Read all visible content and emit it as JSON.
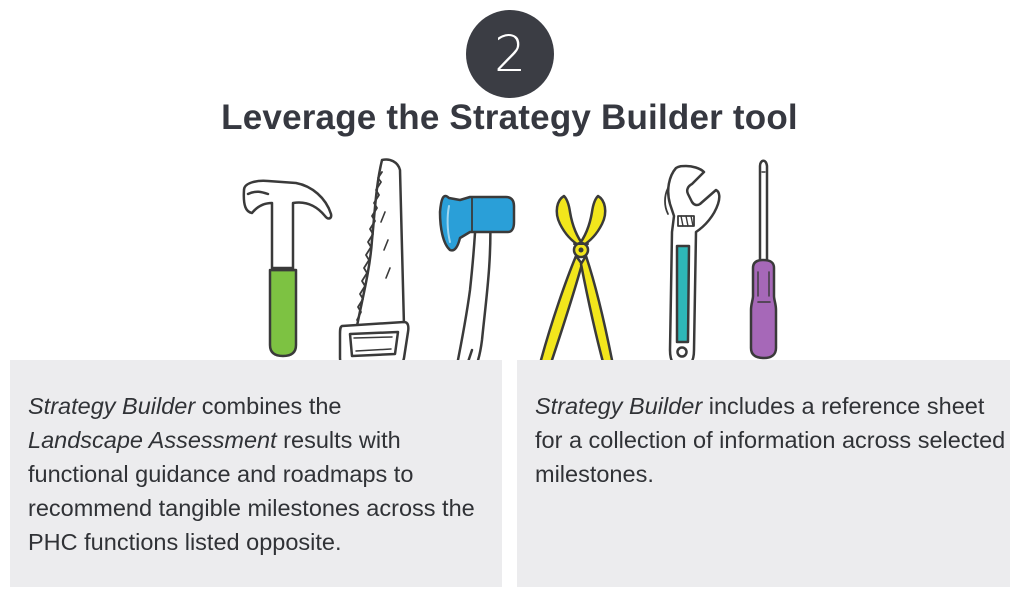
{
  "step": {
    "number": "2"
  },
  "title": "Leverage the Strategy Builder tool",
  "tools": {
    "items": [
      "hammer-icon",
      "saw-icon",
      "axe-icon",
      "pliers-icon",
      "wrench-icon",
      "screwdriver-icon"
    ],
    "colors": {
      "hammer_handle": "#7dc242",
      "axe_head": "#2a9fd8",
      "pliers": "#f2e61c",
      "wrench_grip": "#2eb7b8",
      "screwdriver_handle": "#a668b8",
      "outline": "#3a3a3a"
    }
  },
  "panels": {
    "left": {
      "name1": "Strategy Builder",
      "text1": " combines the",
      "name2": "Landscape Assessment",
      "text2": " results with functional guidance and roadmaps to recommend tangible milestones across the PHC functions listed opposite."
    },
    "right": {
      "name1": "Strategy Builder",
      "text1": " includes a reference sheet for a collection of information across selected milestones."
    },
    "background": "#ececee"
  },
  "colors": {
    "circle": "#3b3d44",
    "title_text": "#363840",
    "body_text": "#303236"
  }
}
